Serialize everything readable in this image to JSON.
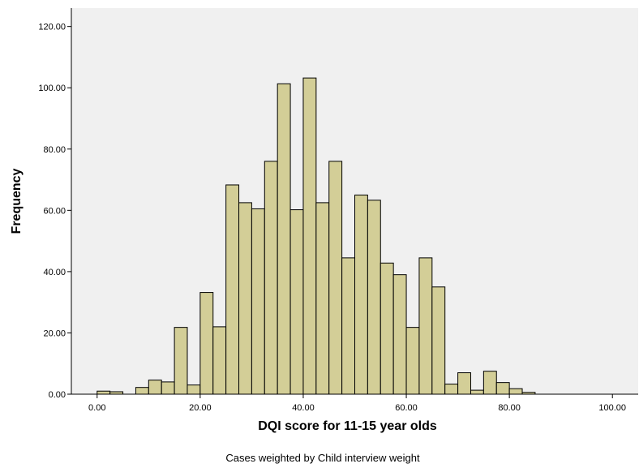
{
  "chart_data": {
    "type": "bar",
    "subtype": "histogram",
    "xlabel": "DQI score for 11-15 year olds",
    "ylabel": "Frequency",
    "footnote": "Cases weighted by Child interview weight",
    "xlim": [
      -5,
      105
    ],
    "ylim": [
      0,
      126
    ],
    "x_ticks": [
      0,
      20,
      40,
      60,
      80,
      100
    ],
    "x_tick_labels": [
      "0.00",
      "20.00",
      "40.00",
      "60.00",
      "80.00",
      "100.00"
    ],
    "y_ticks": [
      0,
      20,
      40,
      60,
      80,
      100,
      120
    ],
    "y_tick_labels": [
      "0.00",
      "20.00",
      "40.00",
      "60.00",
      "80.00",
      "100.00",
      "120.00"
    ],
    "bin_width": 2.5,
    "bins": [
      {
        "x0": 0.0,
        "value": 1.0
      },
      {
        "x0": 2.5,
        "value": 0.8
      },
      {
        "x0": 7.5,
        "value": 2.2
      },
      {
        "x0": 10.0,
        "value": 4.6
      },
      {
        "x0": 12.5,
        "value": 4.0
      },
      {
        "x0": 15.0,
        "value": 21.8
      },
      {
        "x0": 17.5,
        "value": 3.0
      },
      {
        "x0": 20.0,
        "value": 33.2
      },
      {
        "x0": 22.5,
        "value": 22.0
      },
      {
        "x0": 25.0,
        "value": 68.3
      },
      {
        "x0": 27.5,
        "value": 62.5
      },
      {
        "x0": 30.0,
        "value": 60.5
      },
      {
        "x0": 32.5,
        "value": 76.0
      },
      {
        "x0": 35.0,
        "value": 101.3
      },
      {
        "x0": 37.5,
        "value": 60.2
      },
      {
        "x0": 40.0,
        "value": 103.2
      },
      {
        "x0": 42.5,
        "value": 62.5
      },
      {
        "x0": 45.0,
        "value": 76.0
      },
      {
        "x0": 47.5,
        "value": 44.5
      },
      {
        "x0": 50.0,
        "value": 65.0
      },
      {
        "x0": 52.5,
        "value": 63.3
      },
      {
        "x0": 55.0,
        "value": 42.8
      },
      {
        "x0": 57.5,
        "value": 39.0
      },
      {
        "x0": 60.0,
        "value": 21.8
      },
      {
        "x0": 62.5,
        "value": 44.5
      },
      {
        "x0": 65.0,
        "value": 35.0
      },
      {
        "x0": 67.5,
        "value": 3.3
      },
      {
        "x0": 70.0,
        "value": 7.0
      },
      {
        "x0": 72.5,
        "value": 1.3
      },
      {
        "x0": 75.0,
        "value": 7.5
      },
      {
        "x0": 77.5,
        "value": 3.8
      },
      {
        "x0": 80.0,
        "value": 1.8
      },
      {
        "x0": 82.5,
        "value": 0.6
      }
    ],
    "grid": false,
    "legend": "none"
  },
  "colors": {
    "plot_background": "#f0f0f0",
    "bar_fill": "#d3ce97",
    "bar_stroke": "#000000",
    "axis": "#000000"
  }
}
